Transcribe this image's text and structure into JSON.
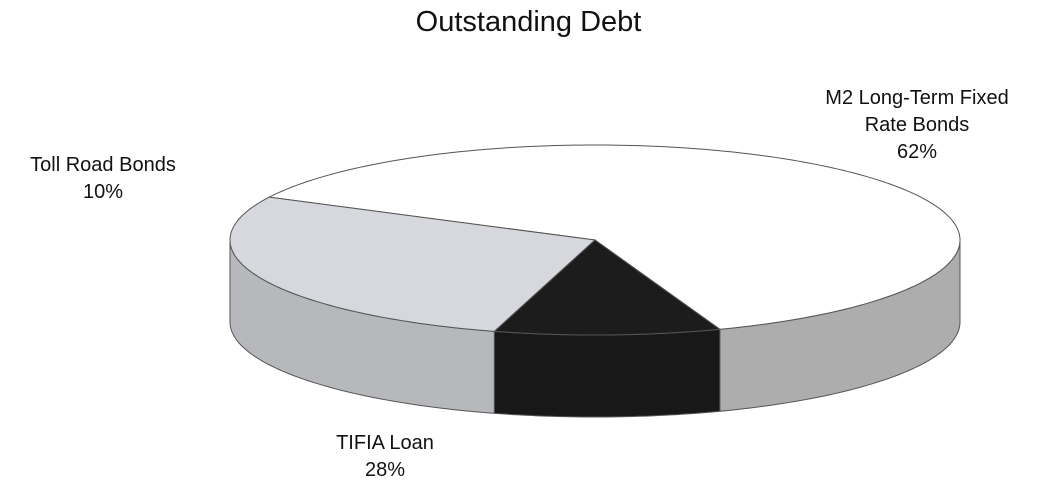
{
  "chart_data": {
    "type": "pie",
    "title": "Outstanding Debt",
    "categories": [
      "M2 Long-Term Fixed Rate Bonds",
      "TIFIA Loan",
      "Toll Road Bonds"
    ],
    "values": [
      62,
      28,
      10
    ],
    "value_labels": [
      "62%",
      "28%",
      "10%"
    ],
    "colors": [
      "#ffffff",
      "#d6d8dd",
      "#1c1c1c"
    ]
  }
}
